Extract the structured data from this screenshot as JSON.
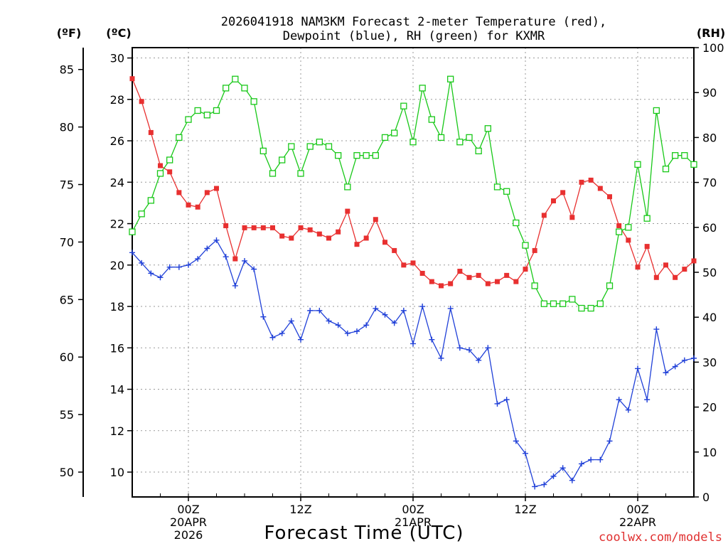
{
  "chart_data": {
    "type": "line",
    "title_lines": [
      "2026041918 NAM3KM Forecast 2-meter Temperature (red),",
      "Dewpoint (blue), RH (green) for KXMR"
    ],
    "xlabel": "Forecast Time (UTC)",
    "credit": "coolwx.com/models",
    "units": {
      "fahrenheit": "(ºF)",
      "celsius": "(ºC)",
      "rh": "(RH)"
    },
    "x_range_hours": [
      0,
      60
    ],
    "x_ticks": [
      {
        "hour": 6,
        "lines": [
          "00Z",
          "20APR",
          "2026"
        ]
      },
      {
        "hour": 18,
        "lines": [
          "12Z"
        ]
      },
      {
        "hour": 30,
        "lines": [
          "00Z",
          "21APR"
        ]
      },
      {
        "hour": 42,
        "lines": [
          "12Z"
        ]
      },
      {
        "hour": 54,
        "lines": [
          "00Z",
          "22APR"
        ]
      }
    ],
    "celsius_axis": {
      "range": [
        8.8,
        30.5
      ],
      "ticks": [
        10,
        12,
        14,
        16,
        18,
        20,
        22,
        24,
        26,
        28,
        30
      ]
    },
    "fahrenheit_axis": {
      "ticks": [
        50,
        55,
        60,
        65,
        70,
        75,
        80,
        85
      ]
    },
    "rh_axis": {
      "range": [
        0,
        100
      ],
      "ticks": [
        0,
        10,
        20,
        30,
        40,
        50,
        60,
        70,
        80,
        90,
        100
      ]
    },
    "series": [
      {
        "name": "2-meter Temperature",
        "axis": "celsius",
        "color": "#e83030",
        "marker": "filled-square",
        "x": [
          0,
          1,
          2,
          3,
          4,
          5,
          6,
          7,
          8,
          9,
          10,
          11,
          12,
          13,
          14,
          15,
          16,
          17,
          18,
          19,
          20,
          21,
          22,
          23,
          24,
          25,
          26,
          27,
          28,
          29,
          30,
          31,
          32,
          33,
          34,
          35,
          36,
          37,
          38,
          39,
          40,
          41,
          42,
          43,
          44,
          45,
          46,
          47,
          48,
          49,
          50,
          51,
          52,
          53,
          54,
          55,
          56,
          57,
          58,
          59,
          60
        ],
        "values": [
          29.0,
          27.9,
          26.4,
          24.8,
          24.5,
          23.5,
          22.9,
          22.8,
          23.5,
          23.7,
          21.9,
          20.3,
          21.8,
          21.8,
          21.8,
          21.8,
          21.4,
          21.3,
          21.8,
          21.7,
          21.5,
          21.3,
          21.6,
          22.6,
          21.0,
          21.3,
          22.2,
          21.1,
          20.7,
          20.0,
          20.1,
          19.6,
          19.2,
          19.0,
          19.1,
          19.7,
          19.4,
          19.5,
          19.1,
          19.2,
          19.5,
          19.2,
          19.8,
          20.7,
          22.4,
          23.1,
          23.5,
          22.3,
          24.0,
          24.1,
          23.7,
          23.3,
          21.9,
          21.2,
          19.9,
          20.9,
          19.4,
          20.0,
          19.4,
          19.8,
          20.2
        ]
      },
      {
        "name": "Dewpoint",
        "axis": "celsius",
        "color": "#2040d8",
        "marker": "plus",
        "x": [
          0,
          1,
          2,
          3,
          4,
          5,
          6,
          7,
          8,
          9,
          10,
          11,
          12,
          13,
          14,
          15,
          16,
          17,
          18,
          19,
          20,
          21,
          22,
          23,
          24,
          25,
          26,
          27,
          28,
          29,
          30,
          31,
          32,
          33,
          34,
          35,
          36,
          37,
          38,
          39,
          40,
          41,
          42,
          43,
          44,
          45,
          46,
          47,
          48,
          49,
          50,
          51,
          52,
          53,
          54,
          55,
          56,
          57,
          58,
          59,
          60
        ],
        "values": [
          20.6,
          20.1,
          19.6,
          19.4,
          19.9,
          19.9,
          20.0,
          20.3,
          20.8,
          21.2,
          20.4,
          19.0,
          20.2,
          19.8,
          17.5,
          16.5,
          16.7,
          17.3,
          16.4,
          17.8,
          17.8,
          17.3,
          17.1,
          16.7,
          16.8,
          17.1,
          17.9,
          17.6,
          17.2,
          17.8,
          16.2,
          18.0,
          16.4,
          15.5,
          17.9,
          16.0,
          15.9,
          15.4,
          16.0,
          13.3,
          13.5,
          11.5,
          10.9,
          9.3,
          9.4,
          9.8,
          10.2,
          9.6,
          10.4,
          10.6,
          10.6,
          11.5,
          13.5,
          13.0,
          15.0,
          13.5,
          16.9,
          14.8,
          15.1,
          15.4,
          15.5
        ]
      },
      {
        "name": "RH",
        "axis": "rh",
        "color": "#18c818",
        "marker": "open-square",
        "x": [
          0,
          1,
          2,
          3,
          4,
          5,
          6,
          7,
          8,
          9,
          10,
          11,
          12,
          13,
          14,
          15,
          16,
          17,
          18,
          19,
          20,
          21,
          22,
          23,
          24,
          25,
          26,
          27,
          28,
          29,
          30,
          31,
          32,
          33,
          34,
          35,
          36,
          37,
          38,
          39,
          40,
          41,
          42,
          43,
          44,
          45,
          46,
          47,
          48,
          49,
          50,
          51,
          52,
          53,
          54,
          55,
          56,
          57,
          58,
          59,
          60
        ],
        "values": [
          59,
          63,
          66,
          72,
          75,
          80,
          84,
          86,
          85,
          86,
          91,
          93,
          91,
          88,
          77,
          72,
          75,
          78,
          72,
          78,
          79,
          78,
          76,
          69,
          76,
          76,
          76,
          80,
          81,
          87,
          79,
          91,
          84,
          80,
          93,
          79,
          80,
          77,
          82,
          69,
          68,
          61,
          56,
          47,
          43,
          43,
          43,
          44,
          42,
          42,
          43,
          47,
          59,
          60,
          74,
          62,
          86,
          73,
          76,
          76,
          74
        ]
      }
    ]
  }
}
